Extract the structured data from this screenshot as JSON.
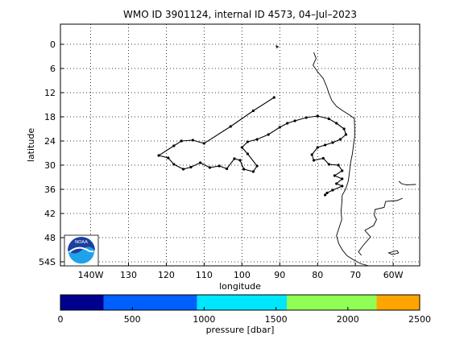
{
  "chart_data": {
    "type": "map",
    "title": "WMO ID 3901124, internal ID 4573, 04–Jul–2023",
    "xlabel": "longitude",
    "ylabel": "latitude",
    "xlim": [
      -148,
      -53
    ],
    "ylim": [
      -55,
      5
    ],
    "grid": true,
    "x_ticks": [
      {
        "value": -140,
        "label": "140W"
      },
      {
        "value": -130,
        "label": "130"
      },
      {
        "value": -120,
        "label": "120"
      },
      {
        "value": -110,
        "label": "110"
      },
      {
        "value": -100,
        "label": "100"
      },
      {
        "value": -90,
        "label": "90"
      },
      {
        "value": -80,
        "label": "80"
      },
      {
        "value": -70,
        "label": "70"
      },
      {
        "value": -60,
        "label": "60W"
      }
    ],
    "y_ticks": [
      {
        "value": 0,
        "label": "0"
      },
      {
        "value": -6,
        "label": "6"
      },
      {
        "value": -12,
        "label": "12"
      },
      {
        "value": -18,
        "label": "18"
      },
      {
        "value": -24,
        "label": "24"
      },
      {
        "value": -30,
        "label": "30"
      },
      {
        "value": -36,
        "label": "36"
      },
      {
        "value": -42,
        "label": "42"
      },
      {
        "value": -48,
        "label": "48"
      },
      {
        "value": -54,
        "label": "54S"
      }
    ],
    "trajectory": [
      [
        -91.5,
        -13.2
      ],
      [
        -97,
        -16.5
      ],
      [
        -103,
        -20.4
      ],
      [
        -110,
        -24.6
      ],
      [
        -113,
        -23.8
      ],
      [
        -116,
        -24.0
      ],
      [
        -118,
        -25.2
      ],
      [
        -122,
        -27.6
      ],
      [
        -119.5,
        -28.2
      ],
      [
        -118,
        -29.8
      ],
      [
        -115.5,
        -31.0
      ],
      [
        -113.5,
        -30.5
      ],
      [
        -111,
        -29.4
      ],
      [
        -108.5,
        -30.6
      ],
      [
        -106,
        -30.2
      ],
      [
        -104,
        -30.9
      ],
      [
        -102,
        -28.4
      ],
      [
        -100.5,
        -28.8
      ],
      [
        -99.5,
        -31.0
      ],
      [
        -97,
        -31.6
      ],
      [
        -96,
        -30.2
      ],
      [
        -98.5,
        -27.2
      ],
      [
        -100,
        -25.6
      ],
      [
        -98.5,
        -24.2
      ],
      [
        -96,
        -23.6
      ],
      [
        -93,
        -22.4
      ],
      [
        -90,
        -20.6
      ],
      [
        -88,
        -19.6
      ],
      [
        -86,
        -19.0
      ],
      [
        -83,
        -18.2
      ],
      [
        -80,
        -17.8
      ],
      [
        -77,
        -18.5
      ],
      [
        -75,
        -19.6
      ],
      [
        -73,
        -21.0
      ],
      [
        -72.5,
        -22.4
      ],
      [
        -74,
        -23.6
      ],
      [
        -76,
        -24.4
      ],
      [
        -78,
        -25.0
      ],
      [
        -80,
        -25.6
      ],
      [
        -81.5,
        -27.4
      ],
      [
        -81,
        -28.8
      ],
      [
        -78.5,
        -28.3
      ],
      [
        -77,
        -29.8
      ],
      [
        -74.5,
        -30.0
      ],
      [
        -73.5,
        -31.4
      ],
      [
        -75.5,
        -32.6
      ],
      [
        -73.5,
        -33.4
      ],
      [
        -75,
        -34.6
      ],
      [
        -73.5,
        -35.2
      ],
      [
        -76,
        -36.2
      ],
      [
        -77.5,
        -36.9
      ],
      [
        -78,
        -37.4
      ]
    ],
    "trajectory_color": "#000000",
    "coastline_color": "#000000",
    "pressure_colorbar": {
      "label": "pressure [dbar]",
      "range": [
        0,
        2500
      ],
      "tick_values": [
        0,
        500,
        1000,
        1500,
        2000,
        2500
      ],
      "tick_labels": [
        "0",
        "500",
        "1000",
        "1500",
        "2000",
        "2500"
      ],
      "bins": [
        {
          "from": 0,
          "to": 300,
          "color": "#00008f"
        },
        {
          "from": 300,
          "to": 950,
          "color": "#0060ff"
        },
        {
          "from": 950,
          "to": 1575,
          "color": "#00e6ff"
        },
        {
          "from": 1575,
          "to": 2200,
          "color": "#90ff55"
        },
        {
          "from": 2200,
          "to": 2500,
          "color": "#ffa500"
        }
      ]
    }
  },
  "logo": {
    "text": "NOAA",
    "colors": {
      "sky": "#1b3f9e",
      "sea": "#1fa2ea",
      "bird": "#ffffff"
    }
  }
}
